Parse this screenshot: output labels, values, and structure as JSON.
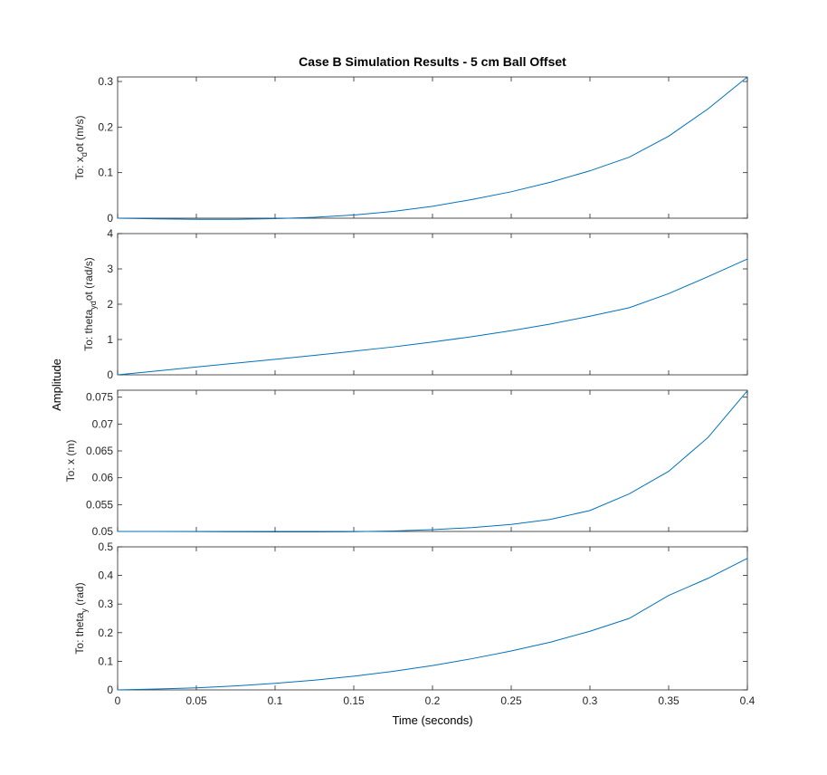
{
  "chart_data": {
    "type": "line",
    "title": "Case B Simulation Results - 5 cm Ball Offset",
    "xlabel": "Time (seconds)",
    "ylabel": "Amplitude",
    "xlim": [
      0,
      0.4
    ],
    "x_ticks": [
      "0",
      "0.05",
      "0.1",
      "0.15",
      "0.2",
      "0.25",
      "0.3",
      "0.35",
      "0.4"
    ],
    "grid": false,
    "line_color": "#0072BD",
    "subplots": [
      {
        "ylabel_main": "To: x",
        "ylabel_sub": "d",
        "ylabel_tail": "ot (m/s)",
        "ylim": [
          0,
          0.31
        ],
        "y_ticks": [
          "0",
          "0.1",
          "0.2",
          "0.3"
        ],
        "x": [
          0,
          0.025,
          0.05,
          0.075,
          0.1,
          0.125,
          0.15,
          0.175,
          0.2,
          0.225,
          0.25,
          0.275,
          0.3,
          0.325,
          0.35,
          0.375,
          0.4
        ],
        "y": [
          0,
          -0.0015,
          -0.0025,
          -0.0025,
          -0.001,
          0.002,
          0.007,
          0.015,
          0.026,
          0.041,
          0.058,
          0.079,
          0.104,
          0.134,
          0.18,
          0.24,
          0.31
        ]
      },
      {
        "ylabel_main": "To: theta",
        "ylabel_sub": "yd",
        "ylabel_tail": "ot (rad/s)",
        "ylim": [
          0,
          4
        ],
        "y_ticks": [
          "0",
          "1",
          "2",
          "3",
          "4"
        ],
        "x": [
          0,
          0.025,
          0.05,
          0.075,
          0.1,
          0.125,
          0.15,
          0.175,
          0.2,
          0.225,
          0.25,
          0.275,
          0.3,
          0.325,
          0.35,
          0.375,
          0.4
        ],
        "y": [
          0,
          0.11,
          0.22,
          0.33,
          0.44,
          0.55,
          0.67,
          0.79,
          0.93,
          1.08,
          1.25,
          1.44,
          1.66,
          1.9,
          2.3,
          2.78,
          3.28
        ]
      },
      {
        "ylabel_main": "To: x (m)",
        "ylabel_sub": "",
        "ylabel_tail": "",
        "ylim": [
          0.05,
          0.0763
        ],
        "y_ticks": [
          "0.05",
          "0.055",
          "0.06",
          "0.065",
          "0.07",
          "0.075"
        ],
        "x": [
          0,
          0.025,
          0.05,
          0.075,
          0.1,
          0.125,
          0.15,
          0.175,
          0.2,
          0.225,
          0.25,
          0.275,
          0.3,
          0.325,
          0.35,
          0.375,
          0.4
        ],
        "y": [
          0.05,
          0.05,
          0.04998,
          0.04994,
          0.04991,
          0.04991,
          0.04995,
          0.05008,
          0.05033,
          0.05072,
          0.0513,
          0.05225,
          0.0539,
          0.057,
          0.0612,
          0.0675,
          0.0762
        ]
      },
      {
        "ylabel_main": "To: theta",
        "ylabel_sub": "y",
        "ylabel_tail": " (rad)",
        "ylim": [
          0,
          0.5
        ],
        "y_ticks": [
          "0",
          "0.1",
          "0.2",
          "0.3",
          "0.4",
          "0.5"
        ],
        "x": [
          0,
          0.025,
          0.05,
          0.075,
          0.1,
          0.125,
          0.15,
          0.175,
          0.2,
          0.225,
          0.25,
          0.275,
          0.3,
          0.325,
          0.35,
          0.375,
          0.4
        ],
        "y": [
          0,
          0.003,
          0.007,
          0.014,
          0.023,
          0.034,
          0.048,
          0.065,
          0.085,
          0.109,
          0.136,
          0.167,
          0.205,
          0.25,
          0.33,
          0.39,
          0.46
        ]
      }
    ]
  }
}
